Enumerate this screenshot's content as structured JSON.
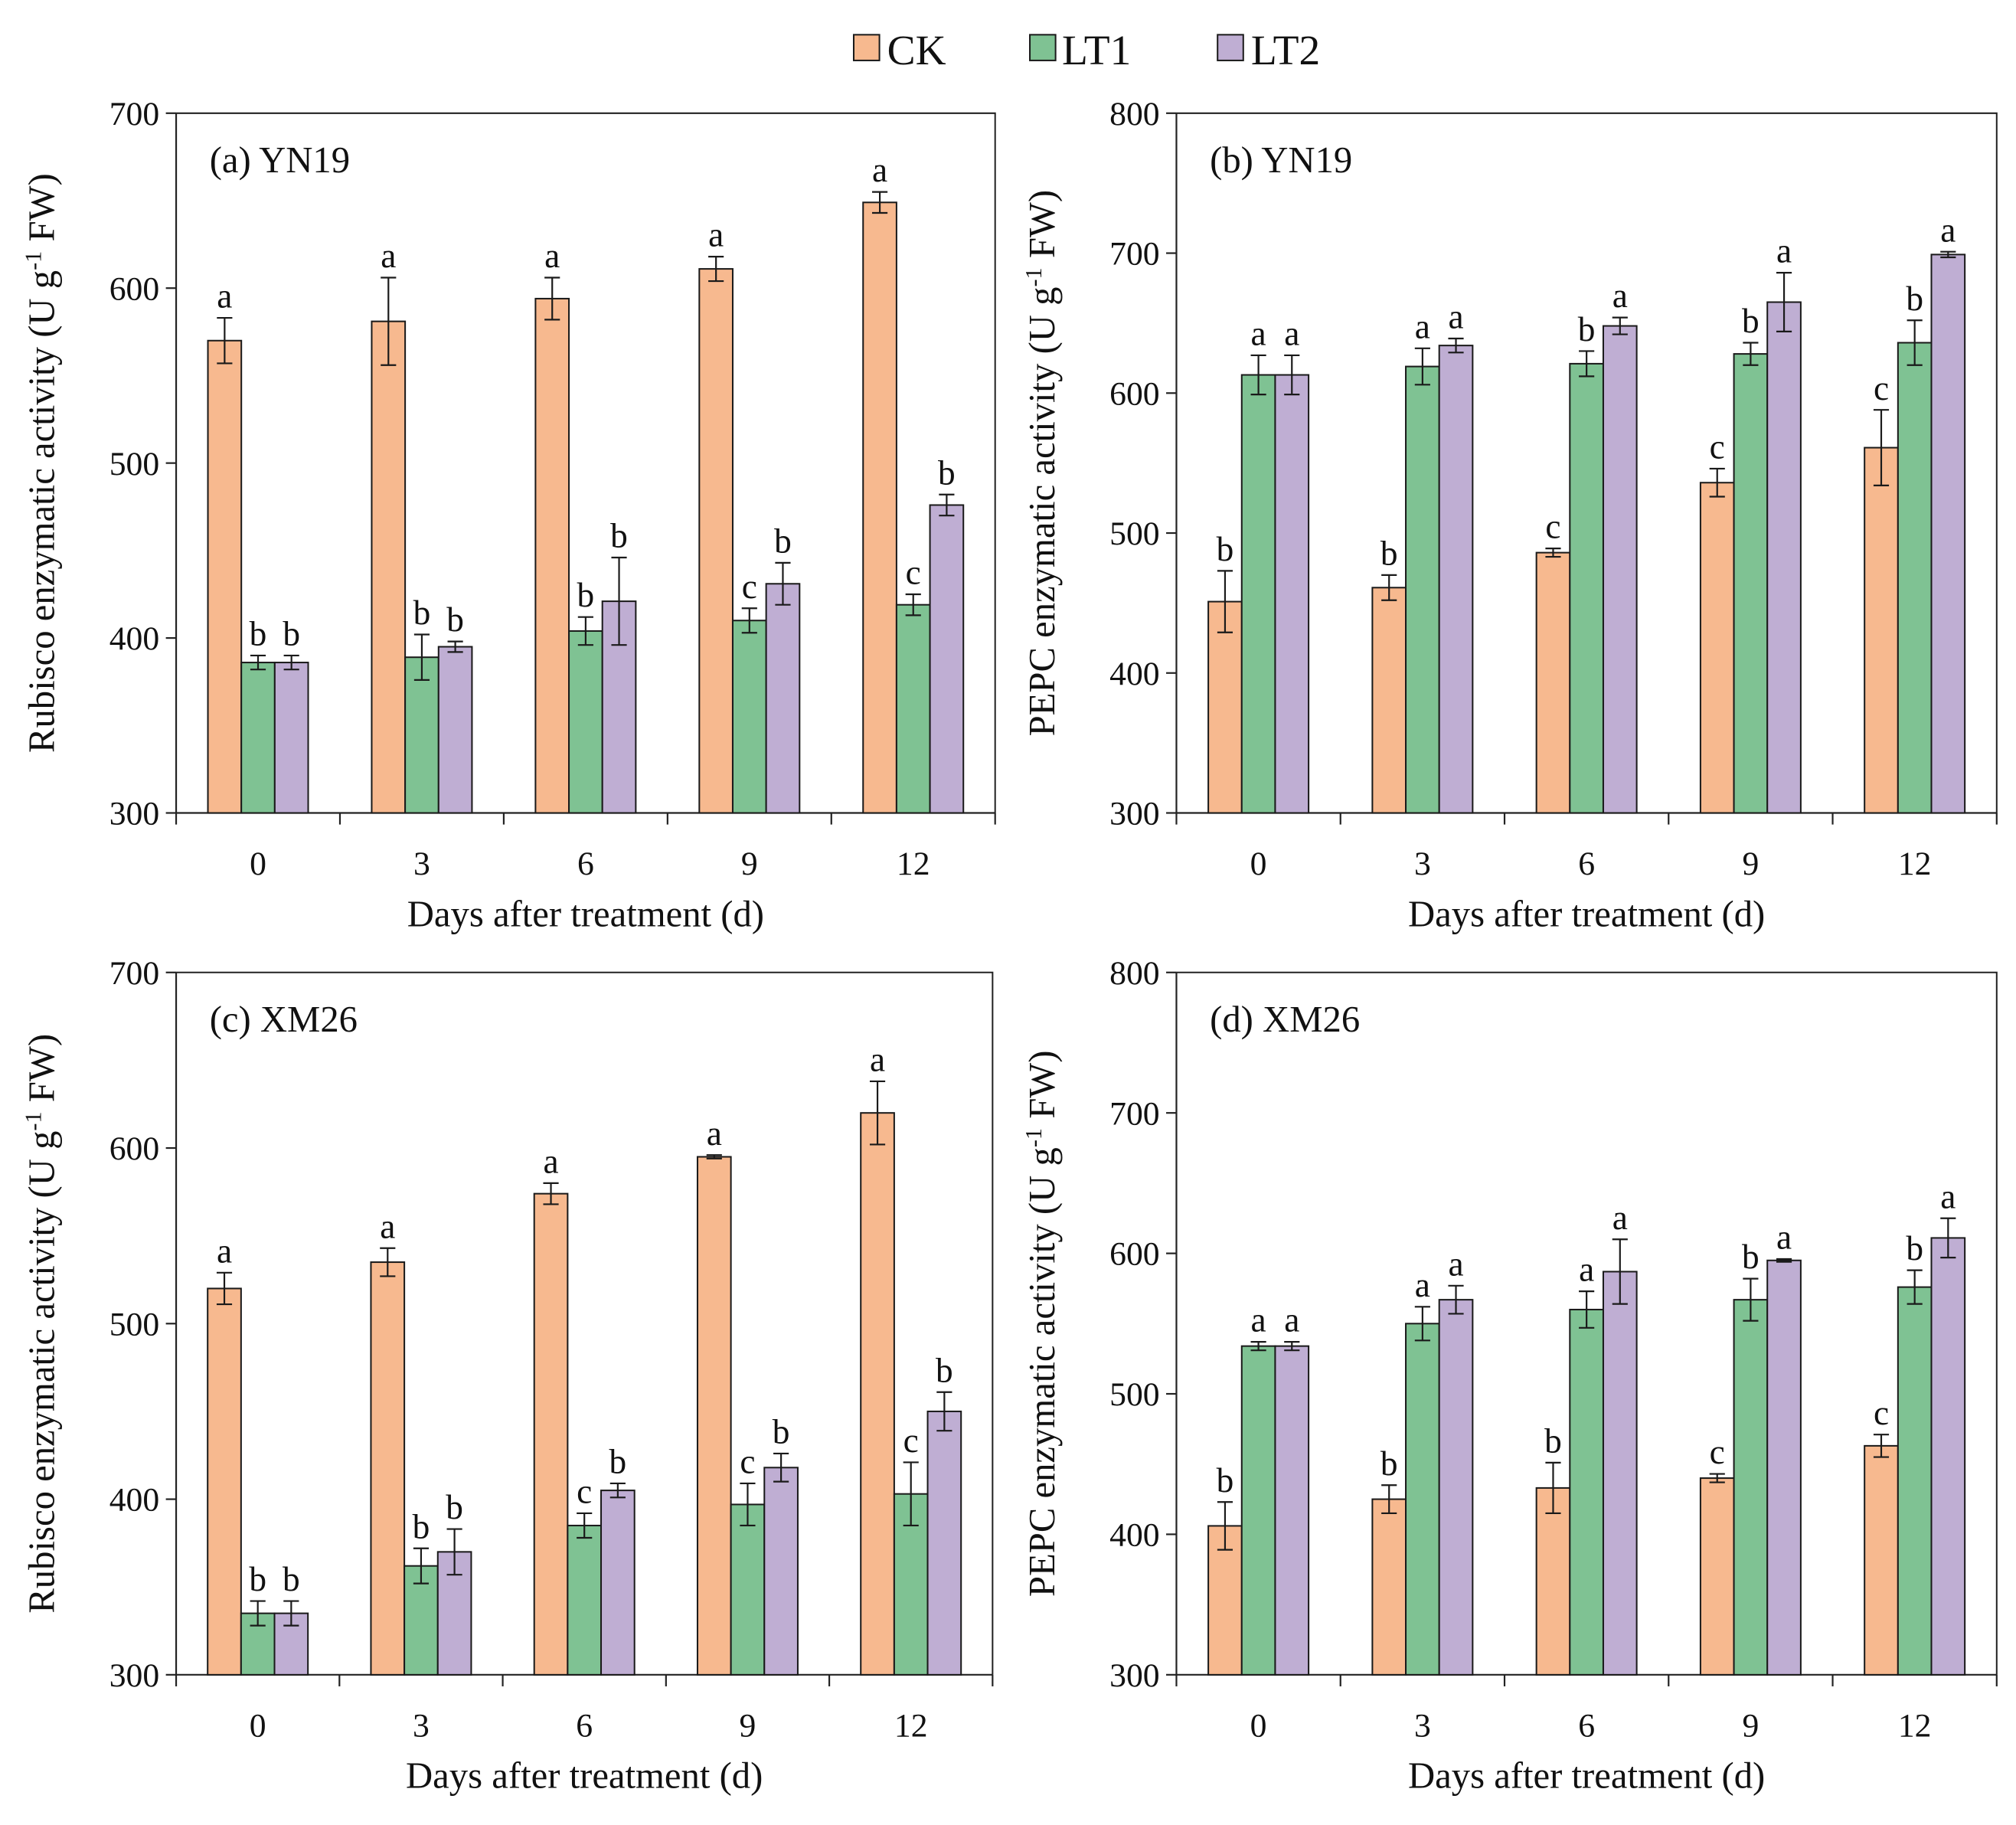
{
  "legend": {
    "entries": [
      {
        "name": "CK",
        "color": "#f7b98f"
      },
      {
        "name": "LT1",
        "color": "#7fc293"
      },
      {
        "name": "LT2",
        "color": "#bfaed3"
      }
    ]
  },
  "chart_data": [
    {
      "type": "bar",
      "title": "(a) YN19",
      "xlabel": "Days after treatment (d)",
      "ylabel": "Rubisco enzymatic activity (U g-1 FW)",
      "ylabel_main": "Rubisco enzymatic activity (U g",
      "ylabel_sup": "-1",
      "ylabel_end": " FW)",
      "ylim": [
        300,
        700
      ],
      "yticks": [
        300,
        400,
        500,
        600,
        700
      ],
      "categories": [
        "0",
        "3",
        "6",
        "9",
        "12"
      ],
      "series": [
        {
          "name": "CK",
          "values": [
            570,
            581,
            594,
            611,
            649
          ],
          "errors": [
            13,
            25,
            12,
            7,
            6
          ],
          "letters": [
            "a",
            "a",
            "a",
            "a",
            "a"
          ]
        },
        {
          "name": "LT1",
          "values": [
            386,
            389,
            404,
            410,
            419
          ],
          "errors": [
            4,
            13,
            8,
            7,
            6
          ],
          "letters": [
            "b",
            "b",
            "b",
            "c",
            "c"
          ]
        },
        {
          "name": "LT2",
          "values": [
            386,
            395,
            421,
            431,
            476
          ],
          "errors": [
            4,
            3,
            25,
            12,
            6
          ],
          "letters": [
            "b",
            "b",
            "b",
            "b",
            "b"
          ]
        }
      ]
    },
    {
      "type": "bar",
      "title": "(b) YN19",
      "xlabel": "Days after treatment (d)",
      "ylabel": "PEPC enzymatic activity (U g-1 FW)",
      "ylabel_main": "PEPC enzymatic activity (U g",
      "ylabel_sup": "-1",
      "ylabel_end": " FW)",
      "ylim": [
        300,
        800
      ],
      "yticks": [
        300,
        400,
        500,
        600,
        700,
        800
      ],
      "categories": [
        "0",
        "3",
        "6",
        "9",
        "12"
      ],
      "series": [
        {
          "name": "CK",
          "values": [
            451,
            461,
            486,
            536,
            561
          ],
          "errors": [
            22,
            9,
            3,
            10,
            27
          ],
          "letters": [
            "b",
            "b",
            "c",
            "c",
            "c"
          ]
        },
        {
          "name": "LT1",
          "values": [
            613,
            619,
            621,
            628,
            636
          ],
          "errors": [
            14,
            13,
            9,
            8,
            16
          ],
          "letters": [
            "a",
            "a",
            "b",
            "b",
            "b"
          ]
        },
        {
          "name": "LT2",
          "values": [
            613,
            634,
            648,
            665,
            699
          ],
          "errors": [
            14,
            5,
            6,
            21,
            2
          ],
          "letters": [
            "a",
            "a",
            "a",
            "a",
            "a"
          ]
        }
      ]
    },
    {
      "type": "bar",
      "title": "(c) XM26",
      "xlabel": "Days after treatment (d)",
      "ylabel": "Rubisco enzymatic activity (U g-1 FW)",
      "ylabel_main": "Rubisco enzymatic activity (U g",
      "ylabel_sup": "-1",
      "ylabel_end": " FW)",
      "ylim": [
        300,
        700
      ],
      "yticks": [
        300,
        400,
        500,
        600,
        700
      ],
      "categories": [
        "0",
        "3",
        "6",
        "9",
        "12"
      ],
      "series": [
        {
          "name": "CK",
          "values": [
            520,
            535,
            574,
            595,
            620
          ],
          "errors": [
            9,
            8,
            6,
            1,
            18
          ],
          "letters": [
            "a",
            "a",
            "a",
            "a",
            "a"
          ]
        },
        {
          "name": "LT1",
          "values": [
            335,
            362,
            385,
            397,
            403
          ],
          "errors": [
            7,
            10,
            7,
            12,
            18
          ],
          "letters": [
            "b",
            "b",
            "c",
            "c",
            "c"
          ]
        },
        {
          "name": "LT2",
          "values": [
            335,
            370,
            405,
            418,
            450
          ],
          "errors": [
            7,
            13,
            4,
            8,
            11
          ],
          "letters": [
            "b",
            "b",
            "b",
            "b",
            "b"
          ]
        }
      ]
    },
    {
      "type": "bar",
      "title": "(d) XM26",
      "xlabel": "Days after treatment (d)",
      "ylabel": "PEPC enzymatic activity (U g-1 FW)",
      "ylabel_main": "PEPC enzymatic activity (U g",
      "ylabel_sup": "-1",
      "ylabel_end": " FW)",
      "ylim": [
        300,
        800
      ],
      "yticks": [
        300,
        400,
        500,
        600,
        700,
        800
      ],
      "categories": [
        "0",
        "3",
        "6",
        "9",
        "12"
      ],
      "series": [
        {
          "name": "CK",
          "values": [
            406,
            425,
            433,
            440,
            463
          ],
          "errors": [
            17,
            10,
            18,
            3,
            8
          ],
          "letters": [
            "b",
            "b",
            "b",
            "c",
            "c"
          ]
        },
        {
          "name": "LT1",
          "values": [
            534,
            550,
            560,
            567,
            576
          ],
          "errors": [
            3,
            12,
            13,
            15,
            12
          ],
          "letters": [
            "a",
            "a",
            "a",
            "b",
            "b"
          ]
        },
        {
          "name": "LT2",
          "values": [
            534,
            567,
            587,
            595,
            611
          ],
          "errors": [
            3,
            10,
            23,
            1,
            14
          ],
          "letters": [
            "a",
            "a",
            "a",
            "a",
            "a"
          ]
        }
      ]
    }
  ]
}
